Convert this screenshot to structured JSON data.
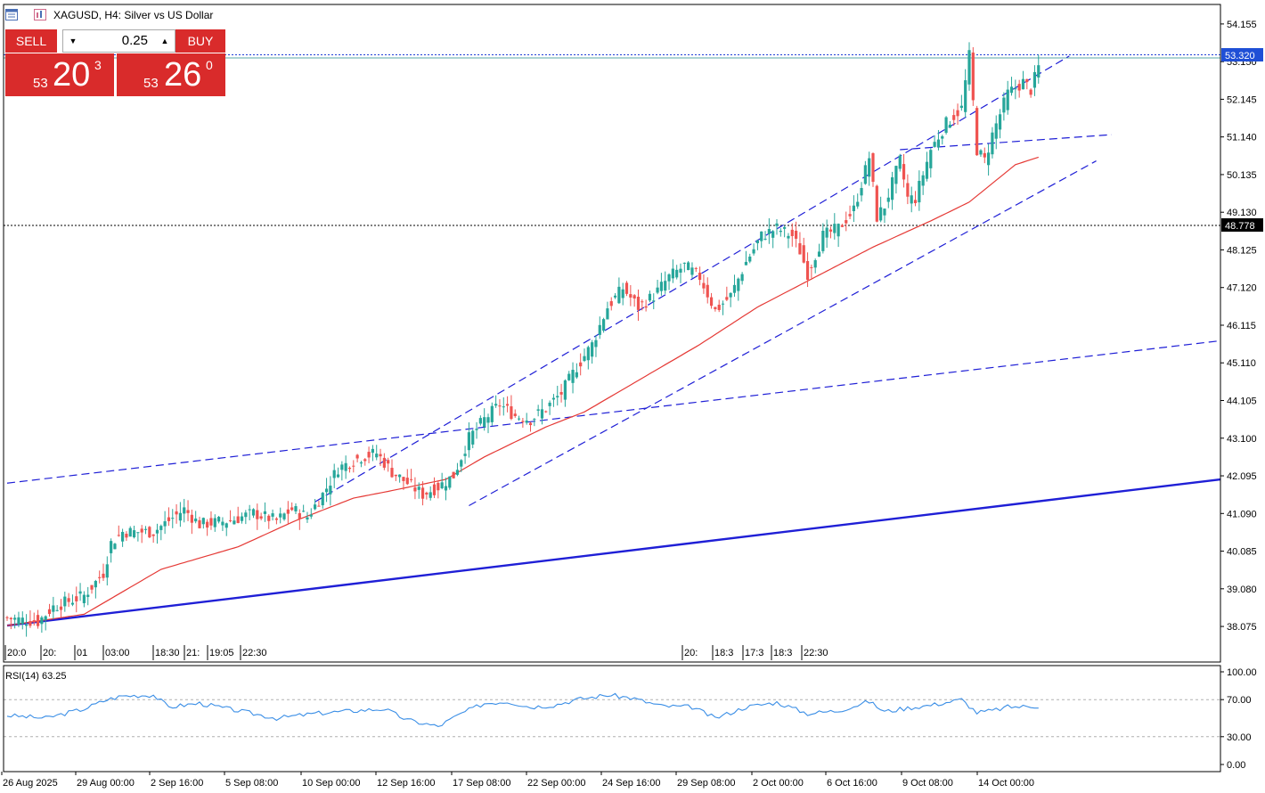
{
  "window": {
    "title": "XAGUSD, H4:  Silver vs US Dollar"
  },
  "trade_panel": {
    "sell_label": "SELL",
    "buy_label": "BUY",
    "volume": "0.25",
    "sell_price": {
      "prefix": "53",
      "big": "20",
      "sup": "3"
    },
    "buy_price": {
      "prefix": "53",
      "big": "26",
      "sup": "0"
    }
  },
  "price_labels": {
    "current": "53.320",
    "level": "48.778"
  },
  "rsi_label": "RSI(14) 63.25",
  "session_labels_left": [
    "20:0",
    "20:",
    "01",
    "03:00",
    "18:30",
    "21:",
    "19:05",
    "22:30"
  ],
  "session_labels_right": [
    "20:",
    "18:3",
    "17:3",
    "18:3",
    "22:30"
  ],
  "colors": {
    "bull": "#26a69a",
    "bear": "#ef5350",
    "ma": "#e53935",
    "trend": "#1f1fd6",
    "rsi": "#3a8ee6",
    "bid_label_bg": "#1f4fd6"
  },
  "chart_data": [
    {
      "type": "candlestick",
      "symbol": "XAGUSD",
      "timeframe": "H4",
      "ylim": [
        37.9,
        54.6
      ],
      "y_ticks": [
        "54.155",
        "53.150",
        "52.145",
        "51.140",
        "50.135",
        "49.130",
        "48.125",
        "47.120",
        "46.115",
        "45.110",
        "44.105",
        "43.100",
        "42.095",
        "41.090",
        "40.085",
        "39.080",
        "38.075"
      ],
      "x_ticks": [
        "26 Aug 2025",
        "29 Aug 00:00",
        "2 Sep 16:00",
        "5 Sep 08:00",
        "10 Sep 00:00",
        "12 Sep 16:00",
        "17 Sep 08:00",
        "22 Sep 00:00",
        "24 Sep 16:00",
        "29 Sep 08:00",
        "2 Oct 00:00",
        "6 Oct 16:00",
        "9 Oct 08:00",
        "14 Oct 00:00"
      ],
      "anchors": [
        [
          0,
          38.3
        ],
        [
          8,
          38.2
        ],
        [
          12,
          38.6
        ],
        [
          20,
          38.9
        ],
        [
          25,
          39.5
        ],
        [
          27,
          40.3
        ],
        [
          30,
          40.6
        ],
        [
          38,
          40.6
        ],
        [
          42,
          40.9
        ],
        [
          46,
          41.2
        ],
        [
          50,
          40.8
        ],
        [
          58,
          40.9
        ],
        [
          64,
          41.1
        ],
        [
          70,
          40.9
        ],
        [
          74,
          41.2
        ],
        [
          78,
          41.0
        ],
        [
          82,
          41.6
        ],
        [
          86,
          42.3
        ],
        [
          92,
          42.6
        ],
        [
          96,
          42.7
        ],
        [
          100,
          42.2
        ],
        [
          104,
          41.9
        ],
        [
          108,
          41.6
        ],
        [
          112,
          41.8
        ],
        [
          116,
          42.1
        ],
        [
          120,
          43.1
        ],
        [
          124,
          43.6
        ],
        [
          128,
          44.0
        ],
        [
          132,
          43.7
        ],
        [
          136,
          43.6
        ],
        [
          140,
          43.9
        ],
        [
          144,
          44.3
        ],
        [
          148,
          45.0
        ],
        [
          152,
          45.6
        ],
        [
          156,
          46.6
        ],
        [
          160,
          47.1
        ],
        [
          164,
          46.6
        ],
        [
          168,
          46.9
        ],
        [
          172,
          47.4
        ],
        [
          176,
          47.7
        ],
        [
          180,
          47.4
        ],
        [
          184,
          46.5
        ],
        [
          188,
          46.9
        ],
        [
          192,
          47.8
        ],
        [
          196,
          48.5
        ],
        [
          200,
          48.7
        ],
        [
          204,
          48.5
        ],
        [
          206,
          48.1
        ],
        [
          208,
          47.5
        ],
        [
          212,
          48.5
        ],
        [
          216,
          48.7
        ],
        [
          220,
          49.2
        ],
        [
          224,
          50.6
        ],
        [
          226,
          49.0
        ],
        [
          228,
          49.3
        ],
        [
          232,
          50.5
        ],
        [
          234,
          49.5
        ],
        [
          236,
          49.5
        ],
        [
          240,
          50.8
        ],
        [
          244,
          51.5
        ],
        [
          248,
          51.9
        ],
        [
          250,
          53.3
        ],
        [
          252,
          50.8
        ],
        [
          254,
          50.5
        ],
        [
          256,
          51.2
        ],
        [
          260,
          52.3
        ],
        [
          264,
          52.6
        ],
        [
          266,
          52.4
        ],
        [
          268,
          53.0
        ]
      ],
      "candle_count": 269,
      "series": [
        {
          "type": "line",
          "description": "moving average",
          "points": [
            [
              0,
              38.1
            ],
            [
              20,
              38.4
            ],
            [
              40,
              39.6
            ],
            [
              60,
              40.2
            ],
            [
              75,
              40.9
            ],
            [
              90,
              41.5
            ],
            [
              100,
              41.7
            ],
            [
              114,
              42.0
            ],
            [
              124,
              42.6
            ],
            [
              140,
              43.4
            ],
            [
              150,
              43.8
            ],
            [
              165,
              44.7
            ],
            [
              180,
              45.6
            ],
            [
              195,
              46.6
            ],
            [
              210,
              47.4
            ],
            [
              225,
              48.2
            ],
            [
              240,
              48.9
            ],
            [
              250,
              49.4
            ],
            [
              262,
              50.4
            ],
            [
              268,
              50.6
            ]
          ]
        },
        {
          "type": "line",
          "description": "channel upper (dashed)",
          "points": [
            [
              80,
              41.4
            ],
            [
              276,
              53.3
            ]
          ]
        },
        {
          "type": "line",
          "description": "channel upper extended (dashed)",
          "points": [
            [
              232,
              50.8
            ],
            [
              287,
              51.2
            ]
          ]
        },
        {
          "type": "line",
          "description": "channel lower (dashed)",
          "points": [
            [
              120,
              41.3
            ],
            [
              283,
              50.5
            ]
          ]
        },
        {
          "type": "line",
          "description": "long dashed trendline",
          "points": [
            [
              0,
              41.9
            ],
            [
              320,
              45.7
            ]
          ]
        },
        {
          "type": "line",
          "description": "long solid trendline",
          "points": [
            [
              0,
              38.1
            ],
            [
              320,
              42.0
            ]
          ]
        },
        {
          "type": "hline",
          "description": "current price",
          "y": 53.32
        },
        {
          "type": "hline",
          "description": "level",
          "y": 48.778
        }
      ]
    },
    {
      "type": "line",
      "title": "RSI(14) 63.25",
      "ylim": [
        0,
        100
      ],
      "y_ticks": [
        "100.00",
        "70.00",
        "30.00",
        "0.00"
      ],
      "levels": [
        70,
        30
      ],
      "anchors": [
        [
          0,
          53
        ],
        [
          10,
          50
        ],
        [
          20,
          60
        ],
        [
          26,
          70
        ],
        [
          30,
          74
        ],
        [
          38,
          75
        ],
        [
          42,
          62
        ],
        [
          50,
          66
        ],
        [
          60,
          58
        ],
        [
          70,
          50
        ],
        [
          80,
          55
        ],
        [
          90,
          58
        ],
        [
          98,
          60
        ],
        [
          104,
          48
        ],
        [
          112,
          41
        ],
        [
          118,
          55
        ],
        [
          124,
          66
        ],
        [
          130,
          68
        ],
        [
          136,
          62
        ],
        [
          142,
          64
        ],
        [
          148,
          70
        ],
        [
          156,
          75
        ],
        [
          162,
          72
        ],
        [
          170,
          63
        ],
        [
          178,
          62
        ],
        [
          184,
          50
        ],
        [
          192,
          62
        ],
        [
          200,
          67
        ],
        [
          208,
          55
        ],
        [
          216,
          58
        ],
        [
          224,
          68
        ],
        [
          228,
          57
        ],
        [
          234,
          61
        ],
        [
          240,
          64
        ],
        [
          248,
          70
        ],
        [
          252,
          56
        ],
        [
          256,
          58
        ],
        [
          260,
          62
        ],
        [
          268,
          63
        ]
      ]
    }
  ]
}
